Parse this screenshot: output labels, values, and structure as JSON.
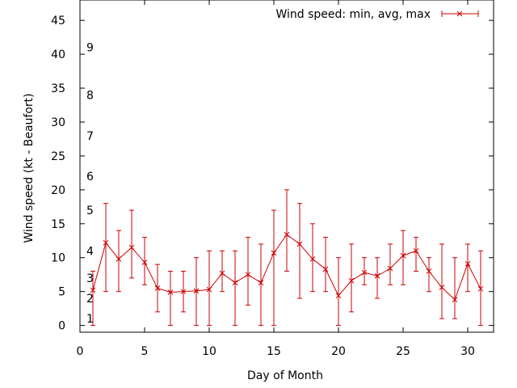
{
  "chart_data": {
    "type": "line",
    "title": "",
    "xlabel": "Day of Month",
    "ylabel": "Wind speed (kt - Beaufort)",
    "xlim": [
      0,
      32
    ],
    "ylim": [
      -1,
      48
    ],
    "x_ticks": [
      0,
      5,
      10,
      15,
      20,
      25,
      30
    ],
    "y_ticks": [
      0,
      5,
      10,
      15,
      20,
      25,
      30,
      35,
      40,
      45
    ],
    "legend": {
      "label": "Wind speed: min, avg, max",
      "position": "top-right"
    },
    "beaufort_labels": [
      {
        "label": "1",
        "value": 1
      },
      {
        "label": "2",
        "value": 4
      },
      {
        "label": "3",
        "value": 7
      },
      {
        "label": "4",
        "value": 11
      },
      {
        "label": "5",
        "value": 17
      },
      {
        "label": "6",
        "value": 22
      },
      {
        "label": "7",
        "value": 28
      },
      {
        "label": "8",
        "value": 34
      },
      {
        "label": "9",
        "value": 41
      }
    ],
    "series": [
      {
        "name": "Wind speed: min, avg, max",
        "color": "#cc0000",
        "x": [
          1,
          2,
          3,
          4,
          5,
          6,
          7,
          8,
          9,
          10,
          11,
          12,
          13,
          14,
          15,
          16,
          17,
          18,
          19,
          20,
          21,
          22,
          23,
          24,
          25,
          26,
          27,
          28,
          29,
          30,
          31
        ],
        "avg": [
          5.2,
          12.2,
          9.8,
          11.5,
          9.3,
          5.5,
          4.9,
          5.0,
          5.1,
          5.3,
          7.7,
          6.3,
          7.5,
          6.3,
          10.7,
          13.4,
          12.0,
          9.8,
          8.3,
          4.4,
          6.6,
          7.8,
          7.3,
          8.4,
          10.3,
          11.0,
          8.0,
          5.6,
          3.8,
          9.1,
          5.4
        ],
        "min": [
          0,
          5,
          5,
          7,
          6,
          2,
          0,
          2,
          0,
          0,
          5,
          0,
          3,
          0,
          0,
          8,
          4,
          5,
          5,
          0,
          2,
          6,
          4,
          6,
          6,
          8,
          5,
          1,
          1,
          5,
          0
        ],
        "max": [
          8,
          18,
          14,
          17,
          13,
          9,
          8,
          8,
          10,
          11,
          11,
          11,
          13,
          12,
          17,
          20,
          18,
          15,
          13,
          10,
          12,
          10,
          10,
          12,
          14,
          13,
          10,
          12,
          10,
          12,
          11
        ]
      }
    ]
  }
}
